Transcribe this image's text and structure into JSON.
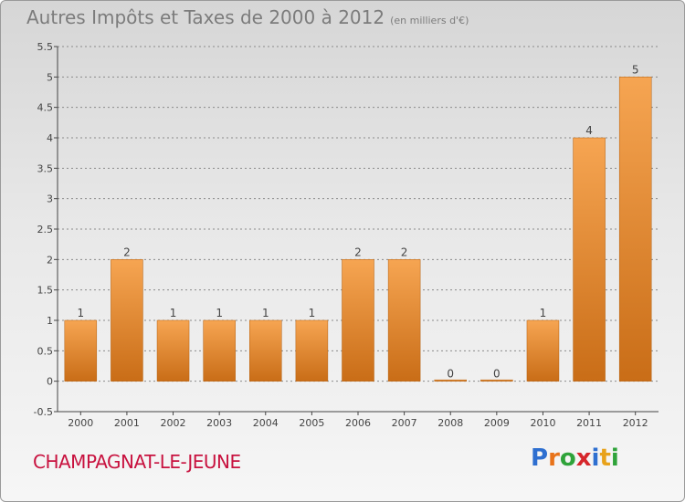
{
  "header": {
    "title": "Autres Impôts et Taxes de 2000 à 2012",
    "subtitle": "(en milliers d'€)"
  },
  "footer": {
    "commune": "CHAMPAGNAT-LE-JEUNE",
    "logo_letters": [
      "P",
      "r",
      "o",
      "x",
      "i",
      "t",
      "i"
    ],
    "logo_colors": [
      "#2e6fd0",
      "#e8731a",
      "#2fa33a",
      "#d6262b",
      "#2e6fd0",
      "#e8a21a",
      "#2fa33a"
    ]
  },
  "colors": {
    "bar_top": "#f6a552",
    "bar_bottom": "#c96d17",
    "axis": "#444444",
    "grid": "#8a8a8a",
    "label": "#444444"
  },
  "chart_data": {
    "type": "bar",
    "categories": [
      "2000",
      "2001",
      "2002",
      "2003",
      "2004",
      "2005",
      "2006",
      "2007",
      "2008",
      "2009",
      "2010",
      "2011",
      "2012"
    ],
    "values": [
      1,
      2,
      1,
      1,
      1,
      1,
      2,
      2,
      0,
      0,
      1,
      4,
      5
    ],
    "data_labels": [
      "1",
      "2",
      "1",
      "1",
      "1",
      "1",
      "2",
      "2",
      "0",
      "0",
      "1",
      "4",
      "5"
    ],
    "yticks": [
      "-0.5",
      "0",
      "0.5",
      "1",
      "1.5",
      "2",
      "2.5",
      "3",
      "3.5",
      "4",
      "4.5",
      "5",
      "5.5"
    ],
    "ylim": [
      -0.5,
      5.5
    ],
    "grid": true
  }
}
